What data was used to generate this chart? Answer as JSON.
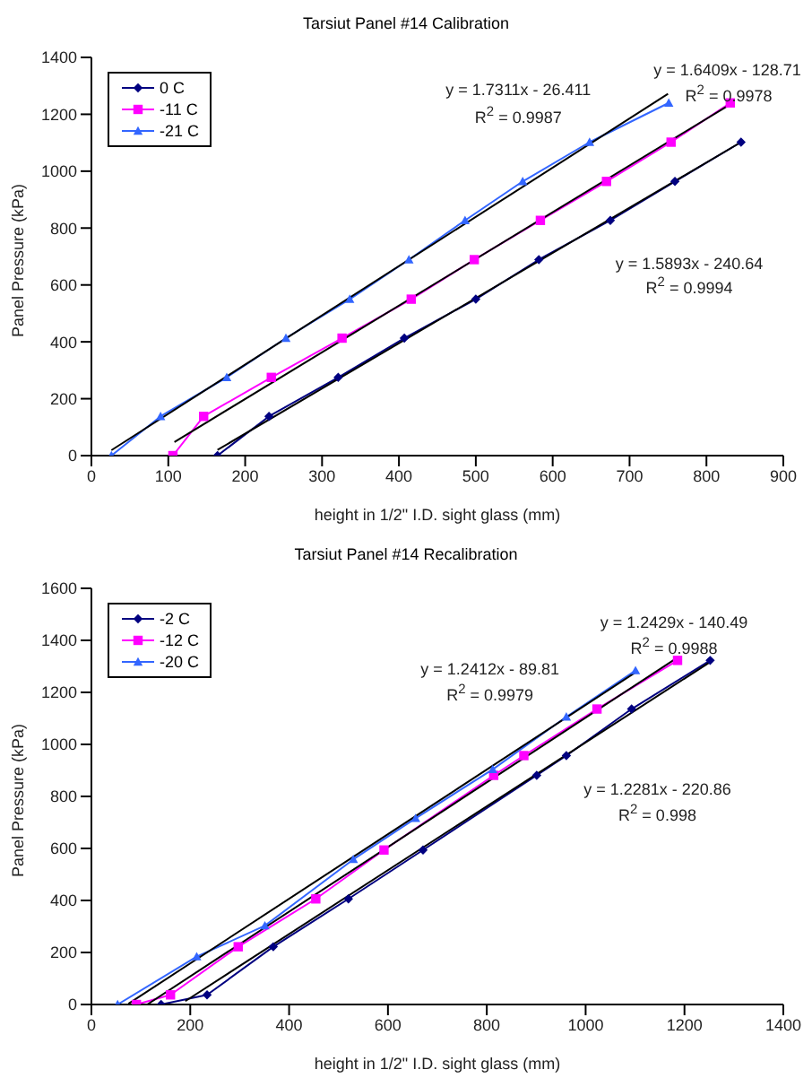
{
  "chart_data": [
    {
      "type": "line",
      "title": "Tarsiut Panel #14 Calibration",
      "xlabel": "height in 1/2\" I.D. sight glass (mm)",
      "ylabel": "Panel Pressure (kPa)",
      "xlim": [
        0,
        900
      ],
      "xticks": [
        0,
        100,
        200,
        300,
        400,
        500,
        600,
        700,
        800,
        900
      ],
      "ylim": [
        0,
        1400
      ],
      "yticks": [
        0,
        200,
        400,
        600,
        800,
        1000,
        1200,
        1400
      ],
      "legend": "top left",
      "series": [
        {
          "name": "0 C",
          "color": "#000080",
          "marker": "diamond",
          "x": [
            164,
            231,
            321,
            407,
            500,
            582,
            675,
            759,
            845
          ],
          "values": [
            0,
            138,
            275,
            413,
            550,
            689,
            827,
            964,
            1102
          ]
        },
        {
          "name": "-11 C",
          "color": "#ff00ff",
          "marker": "square",
          "x": [
            106,
            146,
            234,
            326,
            416,
            498,
            584,
            670,
            754,
            831
          ],
          "values": [
            0,
            138,
            275,
            413,
            550,
            689,
            827,
            964,
            1102,
            1240
          ]
        },
        {
          "name": "-21 C",
          "color": "#3366ff",
          "marker": "triangle",
          "x": [
            26,
            90,
            176,
            253,
            336,
            413,
            486,
            561,
            648,
            751
          ],
          "values": [
            0,
            138,
            275,
            413,
            550,
            689,
            827,
            964,
            1102,
            1240
          ]
        },
        {
          "color": "#000000",
          "marker": "none",
          "x": [
            164,
            845
          ],
          "values": [
            20,
            1102
          ]
        },
        {
          "color": "#000000",
          "marker": "none",
          "x": [
            108,
            831
          ],
          "values": [
            48,
            1235
          ]
        },
        {
          "color": "#000000",
          "marker": "none",
          "x": [
            26,
            750
          ],
          "values": [
            19,
            1272
          ]
        }
      ],
      "annotations": [
        "y = 1.7311x - 26.411",
        "R$^{2}$ = 0.9987",
        "y = 1.6409x - 128.71",
        "R$^{2}$ = 0.9978",
        "y = 1.5893x - 240.64",
        "R$^{2}$ = 0.9994"
      ]
    },
    {
      "type": "line",
      "title": "Tarsiut Panel #14 Recalibration",
      "xlabel": "height in 1/2\" I.D. sight glass (mm)",
      "ylabel": "Panel Pressure (kPa)",
      "xlim": [
        0,
        1400
      ],
      "xticks": [
        0,
        200,
        400,
        600,
        800,
        1000,
        1200,
        1400
      ],
      "ylim": [
        0,
        1600
      ],
      "yticks": [
        0,
        200,
        400,
        600,
        800,
        1000,
        1200,
        1400,
        1600
      ],
      "legend": "top left",
      "series": [
        {
          "name": "-2 C",
          "color": "#000080",
          "marker": "diamond",
          "x": [
            141,
            234,
            368,
            520,
            671,
            901,
            961,
            1093,
            1252
          ],
          "values": [
            0,
            37,
            222,
            406,
            594,
            881,
            957,
            1136,
            1323
          ]
        },
        {
          "name": "-12 C",
          "color": "#ff00ff",
          "marker": "square",
          "x": [
            91,
            160,
            297,
            454,
            592,
            814,
            875,
            1023,
            1186
          ],
          "values": [
            0,
            37,
            222,
            406,
            594,
            881,
            957,
            1136,
            1323
          ]
        },
        {
          "name": "-20 C",
          "color": "#3366ff",
          "marker": "triangle",
          "x": [
            53,
            213,
            351,
            530,
            656,
            812,
            961,
            1101
          ],
          "values": [
            0,
            184,
            303,
            558,
            716,
            904,
            1106,
            1284
          ]
        },
        {
          "color": "#000000",
          "marker": "none",
          "x": [
            190,
            1252
          ],
          "values": [
            13,
            1317
          ]
        },
        {
          "color": "#000000",
          "marker": "none",
          "x": [
            113,
            1186
          ],
          "values": [
            0,
            1334
          ]
        },
        {
          "color": "#000000",
          "marker": "none",
          "x": [
            75,
            1101
          ],
          "values": [
            3,
            1277
          ]
        }
      ],
      "annotations": [
        "y = 1.2412x - 89.81",
        "R$^{2}$ = 0.9979",
        "y = 1.2429x - 140.49",
        "R$^{2}$ = 0.9988",
        "y = 1.2281x - 220.86",
        "R$^{2}$ = 0.998"
      ]
    }
  ]
}
